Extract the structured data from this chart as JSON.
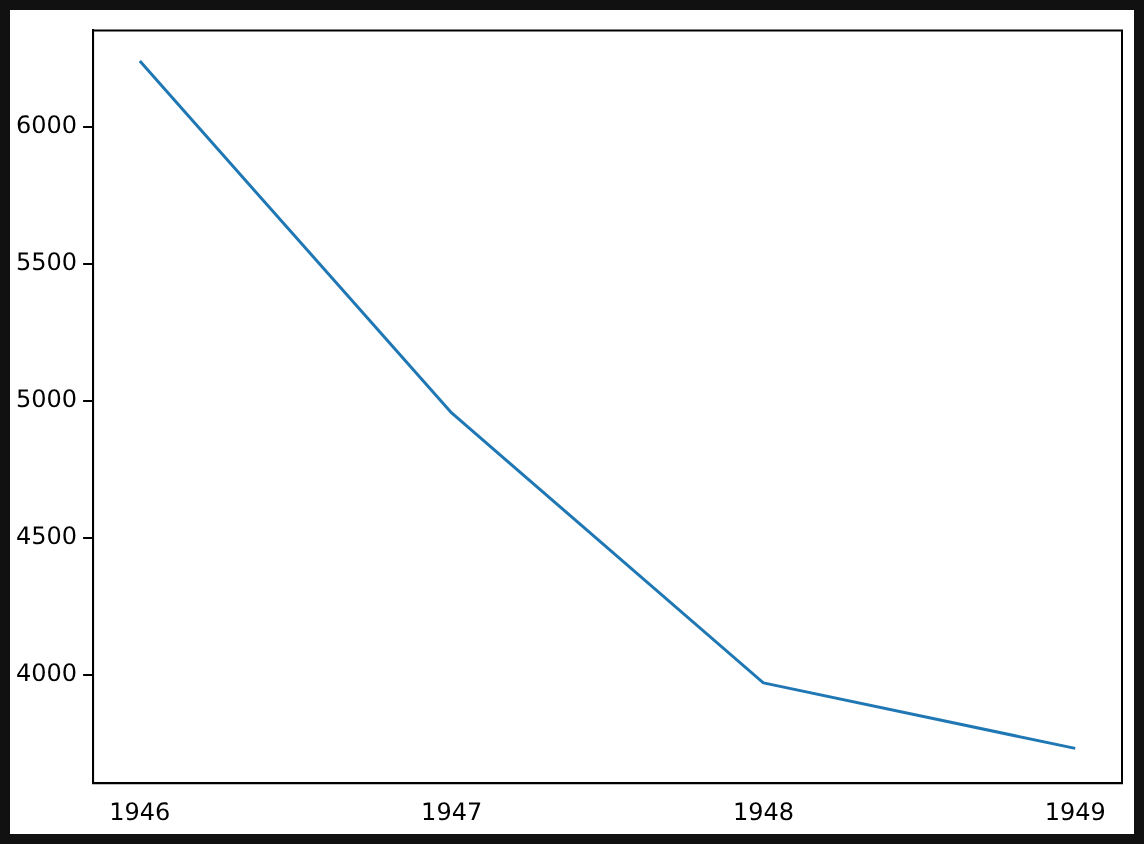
{
  "chart_data": {
    "type": "line",
    "x": [
      1946,
      1947,
      1948,
      1949
    ],
    "series": [
      {
        "color": "#1f77b4",
        "values": [
          6239,
          4955,
          3970,
          3731
        ]
      }
    ],
    "xlim": [
      1945.85,
      1949.15
    ],
    "xticks": [
      1946,
      1947,
      1948,
      1949
    ],
    "ylim": [
      3604,
      6351
    ],
    "yticks": [
      4000,
      4500,
      5000,
      5500,
      6000
    ],
    "grid": false,
    "legend": false,
    "marker": "none",
    "line_style": "solid"
  }
}
